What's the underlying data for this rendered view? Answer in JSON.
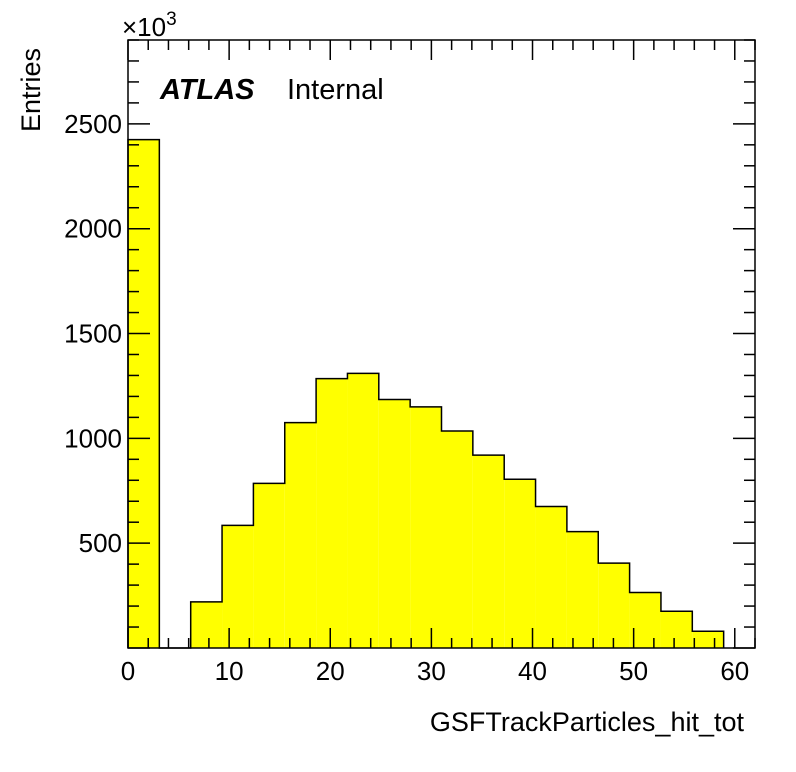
{
  "chart_data": {
    "type": "bar",
    "xlabel": "GSFTrackParticles_hit_tot",
    "ylabel": "Entries",
    "y_multiplier": "×10",
    "y_multiplier_exp": "3",
    "label_bold": "ATLAS",
    "label_normal": "Internal",
    "xlim": [
      0,
      62
    ],
    "ylim": [
      0,
      2900
    ],
    "x_ticks": [
      0,
      10,
      20,
      30,
      40,
      50,
      60
    ],
    "y_ticks": [
      500,
      1000,
      1500,
      2000,
      2500
    ],
    "bin_edges": [
      0,
      3.1,
      6.2,
      9.3,
      12.4,
      15.5,
      18.6,
      21.7,
      24.8,
      27.9,
      31.0,
      34.1,
      37.2,
      40.3,
      43.4,
      46.5,
      49.6,
      52.7,
      55.8,
      58.9
    ],
    "values": [
      2425,
      0,
      220,
      585,
      785,
      1075,
      1285,
      1310,
      1185,
      1150,
      1035,
      920,
      805,
      675,
      555,
      405,
      265,
      175,
      80
    ],
    "fill_color": "#ffff00",
    "line_color": "#000000",
    "grid": false
  }
}
